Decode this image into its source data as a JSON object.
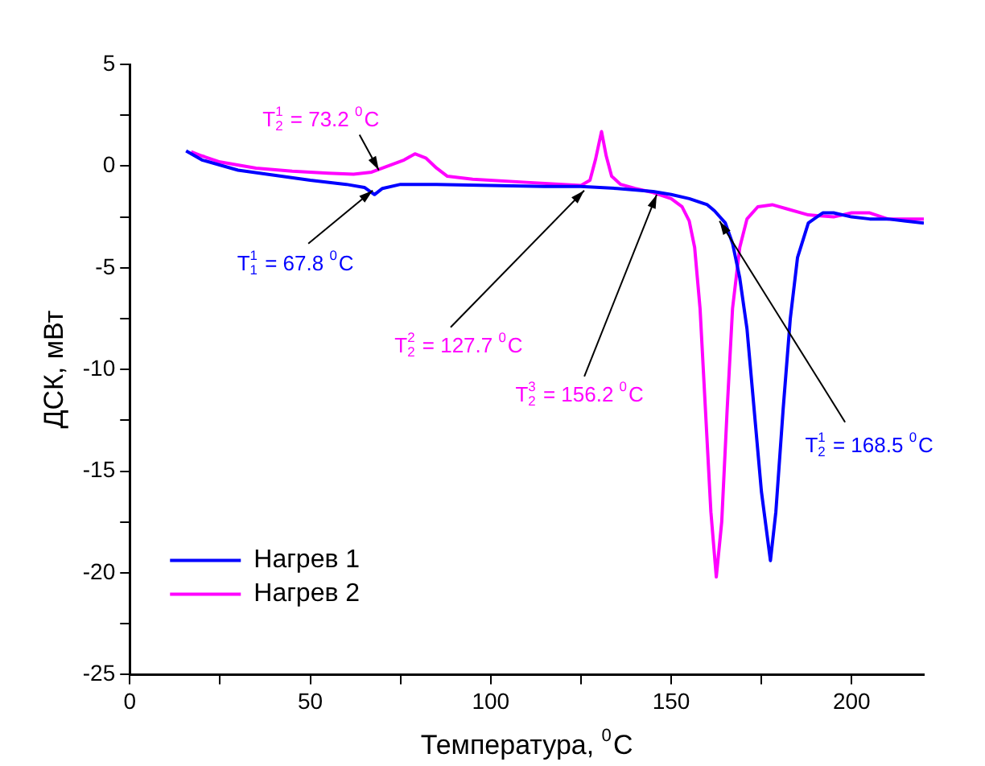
{
  "chart_data": {
    "type": "line",
    "xlabel": "Температура, $^{0}$C",
    "ylabel": "ДСК, мВт",
    "xlim": [
      0,
      220
    ],
    "ylim": [
      -25,
      5
    ],
    "xticks": [
      0,
      {
        "value": 25,
        "label": null
      },
      50,
      {
        "value": 75,
        "label": null
      },
      100,
      {
        "value": 125,
        "label": null
      },
      150,
      {
        "value": 175,
        "label": null
      },
      200
    ],
    "yticks": [
      -25,
      {
        "value": -22.5,
        "label": null
      },
      -20,
      {
        "value": -17.5,
        "label": null
      },
      -15,
      {
        "value": -12.5,
        "label": null
      },
      -10,
      {
        "value": -7.5,
        "label": null
      },
      -5,
      {
        "value": -2.5,
        "label": null
      },
      0,
      {
        "value": 2.5,
        "label": null
      },
      5
    ],
    "grid": false,
    "legend": "bottom left",
    "marker": "none",
    "line_style": "solid",
    "series": [
      {
        "name": "Нагрев 1",
        "color": "#0000ff",
        "x": [
          15.6,
          20,
          30,
          40,
          50,
          60,
          65,
          67.8,
          70,
          75,
          85,
          100,
          115,
          125,
          135,
          145,
          150,
          155,
          160,
          162,
          165,
          167,
          169,
          171,
          173,
          175,
          177.5,
          179,
          181,
          183,
          185,
          188,
          192,
          195,
          200,
          205,
          210,
          215,
          220
        ],
        "values": [
          0.75,
          0.3,
          -0.2,
          -0.45,
          -0.7,
          -0.9,
          -1.05,
          -1.4,
          -1.1,
          -0.9,
          -0.9,
          -0.95,
          -1.0,
          -1.0,
          -1.1,
          -1.25,
          -1.4,
          -1.6,
          -1.9,
          -2.2,
          -2.8,
          -3.8,
          -5.5,
          -8,
          -12,
          -16,
          -19.4,
          -17,
          -12,
          -7.5,
          -4.5,
          -2.8,
          -2.3,
          -2.3,
          -2.5,
          -2.6,
          -2.6,
          -2.7,
          -2.8
        ]
      },
      {
        "name": "Нагрев 2",
        "color": "#ff00ff",
        "x": [
          17,
          20,
          25,
          35,
          45,
          55,
          62,
          67,
          70,
          73,
          76,
          79,
          82,
          85,
          88,
          95,
          110,
          120,
          125,
          127.5,
          129,
          130.7,
          132,
          133.5,
          136,
          140,
          145,
          150,
          153,
          155,
          156.5,
          158,
          159.5,
          161,
          162.5,
          164,
          165.5,
          167,
          169,
          171,
          174,
          178,
          182,
          188,
          195,
          200,
          205,
          210,
          220
        ],
        "values": [
          0.7,
          0.5,
          0.2,
          -0.1,
          -0.25,
          -0.35,
          -0.4,
          -0.3,
          -0.1,
          0.1,
          0.3,
          0.6,
          0.4,
          -0.1,
          -0.5,
          -0.65,
          -0.8,
          -0.9,
          -0.95,
          -0.7,
          0.3,
          1.7,
          0.5,
          -0.5,
          -0.9,
          -1.1,
          -1.3,
          -1.6,
          -2.0,
          -2.7,
          -4,
          -7,
          -12,
          -17,
          -20.2,
          -17.5,
          -12,
          -7,
          -4,
          -2.6,
          -2.0,
          -1.9,
          -2.1,
          -2.4,
          -2.5,
          -2.3,
          -2.3,
          -2.6,
          -2.6
        ]
      }
    ],
    "annotations": [
      {
        "text": "T$^{1}$$_{2}$ = 73.2 $^{0}$C",
        "x": 69,
        "y": -0.2
      },
      {
        "text": "T$^{1}$$_{1}$ = 67.8 $^{0}$C",
        "x": 67.3,
        "y": -1.2
      },
      {
        "text": "T$^{2}$$_{2}$ = 127.7 $^{0}$C",
        "x": 125.9,
        "y": -1.2
      },
      {
        "text": "T$^{3}$$_{2}$ = 156.2 $^{0}$C",
        "x": 146,
        "y": -1.4
      },
      {
        "text": "T$^{1}$$_{2}$ = 168.5 $^{0}$C",
        "x": 163.4,
        "y": -2.7
      }
    ]
  }
}
